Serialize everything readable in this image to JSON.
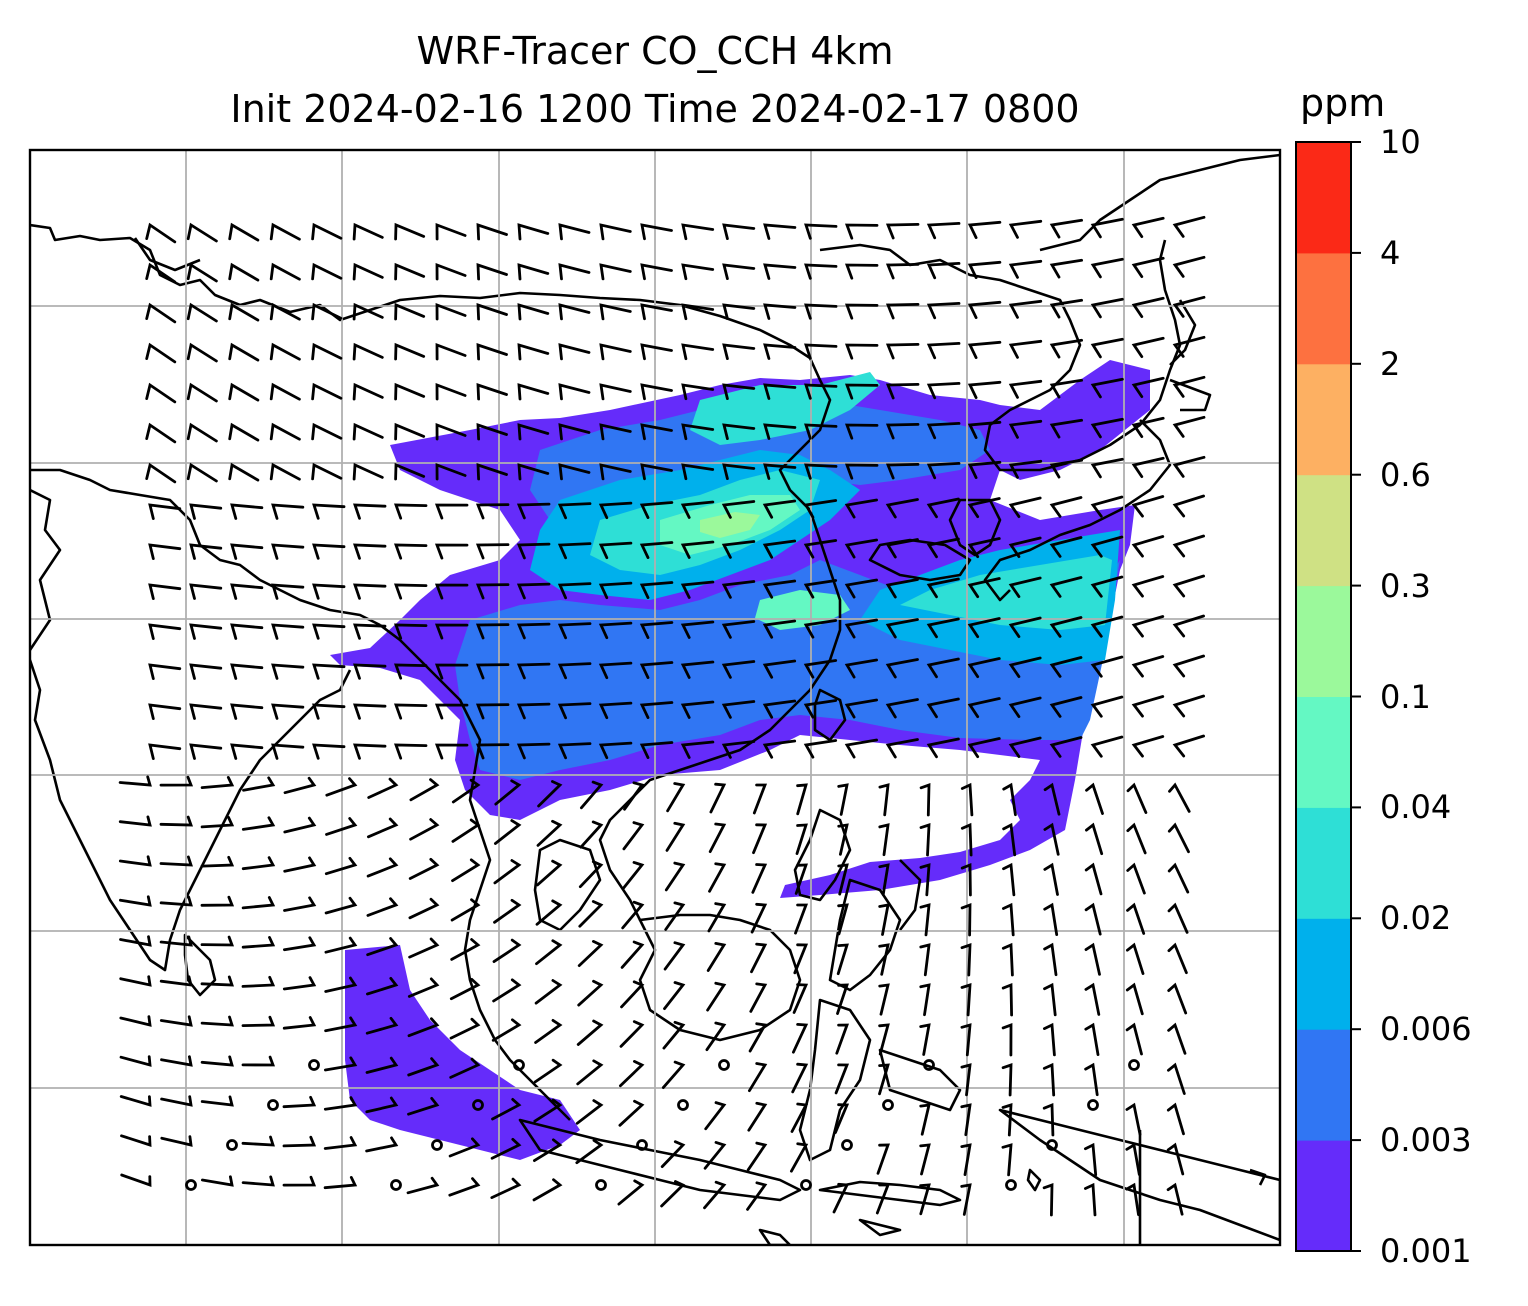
{
  "title": {
    "line1": "WRF-Tracer CO_CCH 4km",
    "line2": "Init 2024-02-16 1200 Time 2024-02-17 0800"
  },
  "colorbar": {
    "unit": "ppm",
    "levels": [
      "0.001",
      "0.003",
      "0.006",
      "0.02",
      "0.04",
      "0.1",
      "0.3",
      "0.6",
      "2",
      "4",
      "10"
    ],
    "colors": [
      "#652cfa",
      "#3076f3",
      "#00b0ec",
      "#2edfd6",
      "#64f8c3",
      "#9bf99b",
      "#cfe184",
      "#fdb062",
      "#fd7140",
      "#fb2917"
    ]
  },
  "map": {
    "variable": "CO_CCH",
    "gridlines": true,
    "wind_barbs": true
  }
}
